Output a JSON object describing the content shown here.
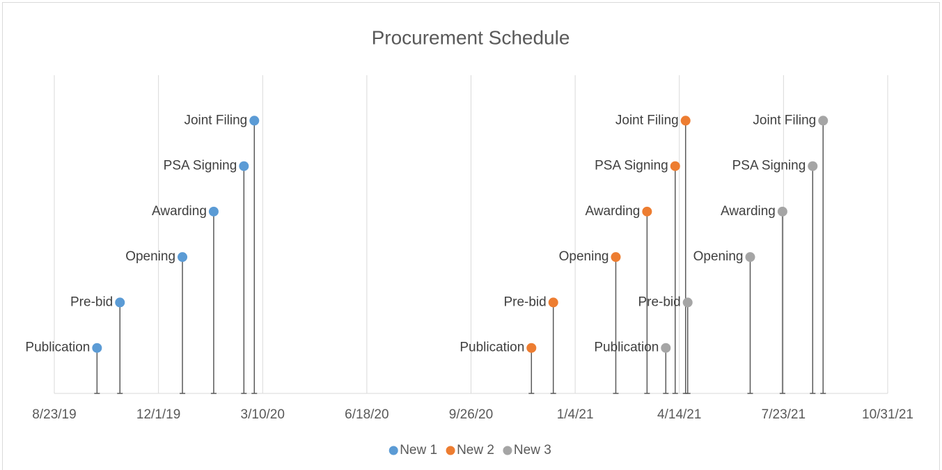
{
  "chart_data": {
    "type": "timeline",
    "title": "Procurement Schedule",
    "xlim": [
      "2019-08-23",
      "2021-10-31"
    ],
    "xticks": [
      {
        "value": "2019-08-23",
        "label": "8/23/19"
      },
      {
        "value": "2019-12-01",
        "label": "12/1/19"
      },
      {
        "value": "2020-03-10",
        "label": "3/10/20"
      },
      {
        "value": "2020-06-18",
        "label": "6/18/20"
      },
      {
        "value": "2020-09-26",
        "label": "9/26/20"
      },
      {
        "value": "2021-01-04",
        "label": "1/4/21"
      },
      {
        "value": "2021-04-14",
        "label": "4/14/21"
      },
      {
        "value": "2021-07-23",
        "label": "7/23/21"
      },
      {
        "value": "2021-10-31",
        "label": "10/31/21"
      }
    ],
    "ylim": [
      0,
      7
    ],
    "grid": true,
    "legend": "bottom",
    "series": [
      {
        "name": "New 1",
        "color": "#5b9bd5",
        "labels": [
          "Publication",
          "Pre-bid",
          "Opening",
          "Awarding",
          "PSA Signing",
          "Joint Filing"
        ],
        "x": [
          "2019-10-03",
          "2019-10-25",
          "2019-12-24",
          "2020-01-23",
          "2020-02-21",
          "2020-03-02"
        ],
        "values": [
          1,
          2,
          3,
          4,
          5,
          6
        ]
      },
      {
        "name": "New 2",
        "color": "#ed7d31",
        "labels": [
          "Publication",
          "Pre-bid",
          "Opening",
          "Awarding",
          "PSA Signing",
          "Joint Filing"
        ],
        "x": [
          "2020-11-23",
          "2020-12-14",
          "2021-02-12",
          "2021-03-14",
          "2021-04-10",
          "2021-04-20"
        ],
        "values": [
          1,
          2,
          3,
          4,
          5,
          6
        ]
      },
      {
        "name": "New 3",
        "color": "#a5a5a5",
        "labels": [
          "Publication",
          "Pre-bid",
          "Opening",
          "Awarding",
          "PSA Signing",
          "Joint Filing"
        ],
        "x": [
          "2021-04-01",
          "2021-04-22",
          "2021-06-21",
          "2021-07-22",
          "2021-08-20",
          "2021-08-30"
        ],
        "values": [
          1,
          2,
          3,
          4,
          5,
          6
        ]
      }
    ]
  }
}
